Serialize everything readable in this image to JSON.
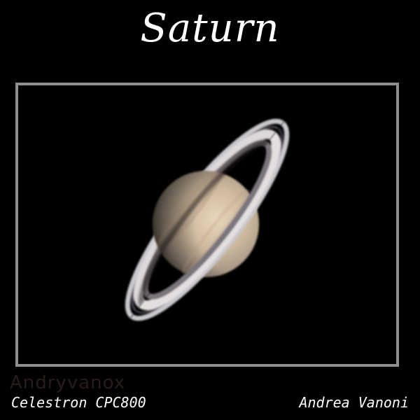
{
  "title": "Saturn",
  "photo": {
    "subject": "saturn-icon"
  },
  "watermark": "Andryvanox",
  "caption_left": "Celestron CPC800",
  "caption_right": "Andrea Vanoni",
  "colors": {
    "background": "#000000",
    "frame": "#8f8f8f",
    "text": "#ffffff",
    "planet": "#c9b59b",
    "rings": "#d9d6d9"
  }
}
